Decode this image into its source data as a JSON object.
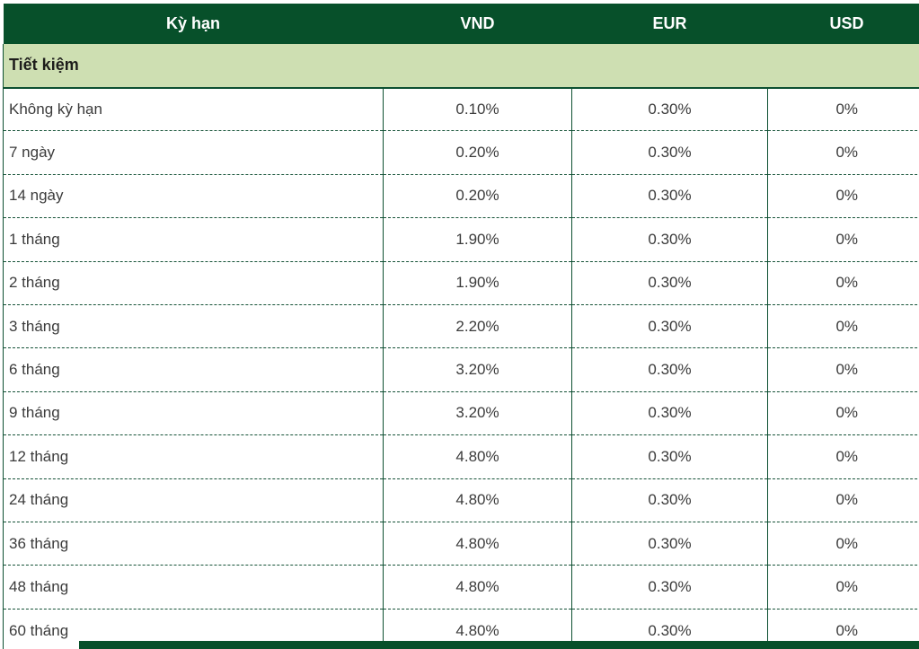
{
  "table": {
    "columns": [
      "Kỳ hạn",
      "VND",
      "EUR",
      "USD"
    ],
    "section_label": "Tiết kiệm",
    "rows": [
      [
        "Không kỳ hạn",
        "0.10%",
        "0.30%",
        "0%"
      ],
      [
        "7 ngày",
        "0.20%",
        "0.30%",
        "0%"
      ],
      [
        "14 ngày",
        "0.20%",
        "0.30%",
        "0%"
      ],
      [
        "1 tháng",
        "1.90%",
        "0.30%",
        "0%"
      ],
      [
        "2 tháng",
        "1.90%",
        "0.30%",
        "0%"
      ],
      [
        "3 tháng",
        "2.20%",
        "0.30%",
        "0%"
      ],
      [
        "6 tháng",
        "3.20%",
        "0.30%",
        "0%"
      ],
      [
        "9 tháng",
        "3.20%",
        "0.30%",
        "0%"
      ],
      [
        "12 tháng",
        "4.80%",
        "0.30%",
        "0%"
      ],
      [
        "24 tháng",
        "4.80%",
        "0.30%",
        "0%"
      ],
      [
        "36 tháng",
        "4.80%",
        "0.30%",
        "0%"
      ],
      [
        "48 tháng",
        "4.80%",
        "0.30%",
        "0%"
      ],
      [
        "60 tháng",
        "4.80%",
        "0.30%",
        "0%"
      ]
    ],
    "colors": {
      "header_bg": "#07502a",
      "header_text": "#ffffff",
      "section_bg": "#cedfb2",
      "section_text": "#1d1d1b",
      "border_solid": "#0d5031",
      "border_dash": "#155237",
      "data_text": "#3b3b3b",
      "page_bg": "#ffffff"
    }
  }
}
